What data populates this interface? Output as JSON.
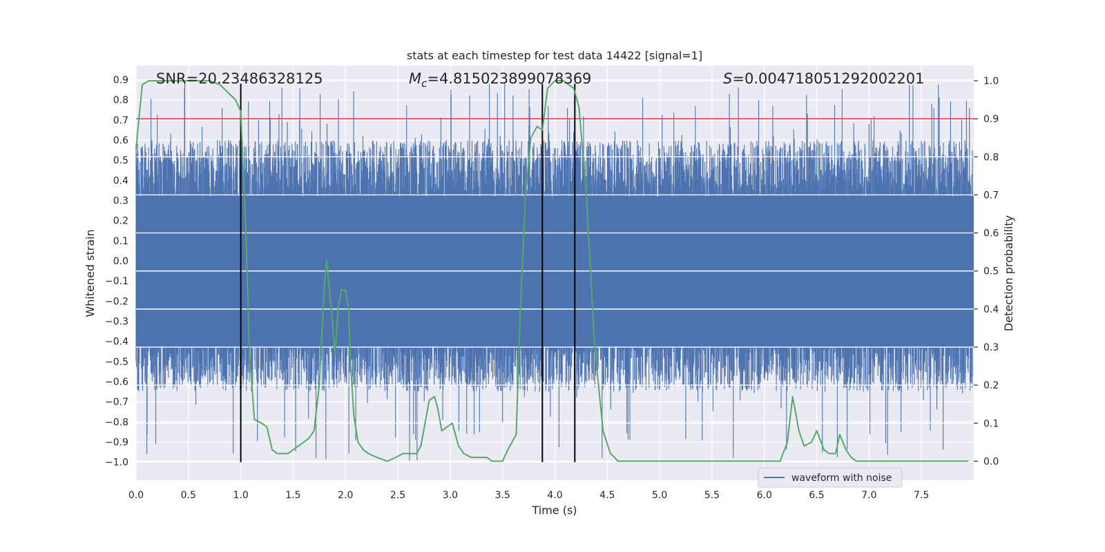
{
  "chart_data": {
    "type": "line",
    "title": "stats at each timestep for test data 14422 [signal=1]",
    "xlabel": "Time (s)",
    "ylabel_left": "Whitened strain",
    "ylabel_right": "Detection probability",
    "xlim": [
      0.0,
      8.0
    ],
    "ylim_left": [
      -1.09,
      0.97
    ],
    "ylim_right": [
      -0.05,
      1.04
    ],
    "x_ticks": [
      "0.0",
      "0.5",
      "1.0",
      "1.5",
      "2.0",
      "2.5",
      "3.0",
      "3.5",
      "4.0",
      "4.5",
      "5.0",
      "5.5",
      "6.0",
      "6.5",
      "7.0",
      "7.5"
    ],
    "y_ticks_left": [
      "0.9",
      "0.8",
      "0.7",
      "0.6",
      "0.5",
      "0.4",
      "0.3",
      "0.2",
      "0.1",
      "0.0",
      "-0.1",
      "-0.2",
      "-0.3",
      "-0.4",
      "-0.5",
      "-0.6",
      "-0.7",
      "-0.8",
      "-0.9",
      "-1.0"
    ],
    "y_ticks_right": [
      "1.0",
      "0.9",
      "0.8",
      "0.7",
      "0.6",
      "0.5",
      "0.4",
      "0.3",
      "0.2",
      "0.1",
      "0.0"
    ],
    "grid": true,
    "legend": {
      "position": "lower-right",
      "entries": [
        {
          "label": "waveform with noise",
          "color": "#4c72b0"
        }
      ]
    },
    "annotations": {
      "snr": "SNR=20.23486328125",
      "mc_symbol": "M",
      "mc_sub": "c",
      "mc_value": "=4.815023899078369",
      "s_symbol": "S",
      "s_value": "=0.004718051292002201"
    },
    "threshold": {
      "value_right": 0.9,
      "color": "#c44e52"
    },
    "vlines": {
      "x": [
        1.0,
        3.88,
        4.19
      ],
      "y_range_left": [
        -1.0,
        0.88
      ],
      "color": "#000000"
    },
    "waveform": {
      "name": "waveform with noise",
      "color": "#4c72b0",
      "samples": 2800,
      "core_range": [
        -0.43,
        0.32
      ],
      "typical_max_range": [
        0.25,
        0.6
      ],
      "typical_min_range": [
        -0.65,
        -0.3
      ],
      "peak_max": 0.88,
      "peak_min": -1.0
    },
    "probability": {
      "name": "detection probability",
      "color": "#55a868",
      "x": [
        0.0,
        0.02,
        0.06,
        0.12,
        0.2,
        0.3,
        0.4,
        0.5,
        0.6,
        0.7,
        0.8,
        0.95,
        1.0,
        1.05,
        1.08,
        1.13,
        1.2,
        1.25,
        1.3,
        1.35,
        1.4,
        1.45,
        1.5,
        1.55,
        1.6,
        1.65,
        1.7,
        1.75,
        1.8,
        1.82,
        1.85,
        1.88,
        1.9,
        1.93,
        1.96,
        2.0,
        2.03,
        2.05,
        2.08,
        2.12,
        2.17,
        2.22,
        2.3,
        2.4,
        2.48,
        2.55,
        2.62,
        2.68,
        2.72,
        2.8,
        2.85,
        2.88,
        2.92,
        2.97,
        3.02,
        3.08,
        3.13,
        3.2,
        3.25,
        3.3,
        3.35,
        3.4,
        3.5,
        3.55,
        3.63,
        3.67,
        3.72,
        3.77,
        3.83,
        3.88,
        3.93,
        4.0,
        4.08,
        4.13,
        4.18,
        4.23,
        4.3,
        4.38,
        4.46,
        4.53,
        4.57,
        4.6,
        4.7,
        4.8,
        4.9,
        5.0,
        5.1,
        5.2,
        5.3,
        5.4,
        5.5,
        5.6,
        5.7,
        5.8,
        6.0,
        6.15,
        6.22,
        6.27,
        6.33,
        6.38,
        6.45,
        6.5,
        6.57,
        6.62,
        6.68,
        6.72,
        6.78,
        6.83,
        6.88,
        6.93,
        7.0,
        7.1,
        7.2,
        7.3,
        7.4,
        7.5,
        7.6,
        7.7,
        7.8,
        7.9,
        7.95
      ],
      "values": [
        0.82,
        0.88,
        0.99,
        1.0,
        1.0,
        1.0,
        1.0,
        1.0,
        1.0,
        1.0,
        0.99,
        0.95,
        0.92,
        0.6,
        0.3,
        0.11,
        0.1,
        0.09,
        0.03,
        0.02,
        0.02,
        0.02,
        0.03,
        0.04,
        0.05,
        0.06,
        0.08,
        0.2,
        0.47,
        0.53,
        0.44,
        0.35,
        0.28,
        0.4,
        0.45,
        0.45,
        0.4,
        0.25,
        0.12,
        0.05,
        0.03,
        0.02,
        0.01,
        0.0,
        0.01,
        0.02,
        0.02,
        0.02,
        0.04,
        0.16,
        0.17,
        0.14,
        0.08,
        0.09,
        0.1,
        0.04,
        0.02,
        0.01,
        0.01,
        0.01,
        0.01,
        0.0,
        0.0,
        0.03,
        0.07,
        0.4,
        0.7,
        0.85,
        0.88,
        0.87,
        0.98,
        1.0,
        1.0,
        0.99,
        0.98,
        0.93,
        0.7,
        0.3,
        0.08,
        0.02,
        0.01,
        0.0,
        0.0,
        0.0,
        0.0,
        0.0,
        0.0,
        0.0,
        0.0,
        0.0,
        0.0,
        0.0,
        0.0,
        0.0,
        0.0,
        0.0,
        0.05,
        0.17,
        0.08,
        0.04,
        0.05,
        0.08,
        0.03,
        0.02,
        0.02,
        0.07,
        0.03,
        0.01,
        0.0,
        0.0,
        0.0,
        0.0,
        0.0,
        0.0,
        0.0,
        0.0,
        0.0,
        0.0,
        0.0,
        0.0,
        0.0
      ]
    }
  }
}
